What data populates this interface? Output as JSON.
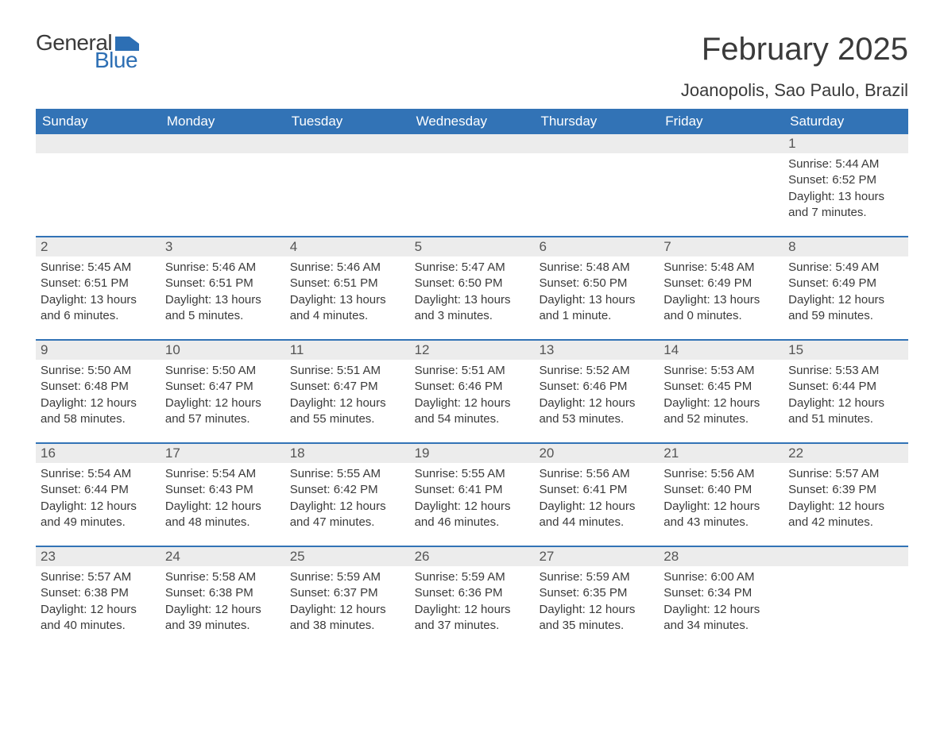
{
  "logo": {
    "text1": "General",
    "text2": "Blue",
    "icon_color": "#2d6fb4"
  },
  "title": "February 2025",
  "location": "Joanopolis, Sao Paulo, Brazil",
  "colors": {
    "header_bg": "#3273b6",
    "header_text": "#ffffff",
    "daynum_bg": "#ececec",
    "week_border": "#3273b6",
    "body_text": "#3a3a3a"
  },
  "fonts": {
    "title_pt": 40,
    "location_pt": 22,
    "weekday_pt": 17,
    "daynum_pt": 17,
    "body_pt": 15
  },
  "weekdays": [
    "Sunday",
    "Monday",
    "Tuesday",
    "Wednesday",
    "Thursday",
    "Friday",
    "Saturday"
  ],
  "weeks": [
    [
      {
        "n": "",
        "sunrise": "",
        "sunset": "",
        "daylight": ""
      },
      {
        "n": "",
        "sunrise": "",
        "sunset": "",
        "daylight": ""
      },
      {
        "n": "",
        "sunrise": "",
        "sunset": "",
        "daylight": ""
      },
      {
        "n": "",
        "sunrise": "",
        "sunset": "",
        "daylight": ""
      },
      {
        "n": "",
        "sunrise": "",
        "sunset": "",
        "daylight": ""
      },
      {
        "n": "",
        "sunrise": "",
        "sunset": "",
        "daylight": ""
      },
      {
        "n": "1",
        "sunrise": "Sunrise: 5:44 AM",
        "sunset": "Sunset: 6:52 PM",
        "daylight": "Daylight: 13 hours and 7 minutes."
      }
    ],
    [
      {
        "n": "2",
        "sunrise": "Sunrise: 5:45 AM",
        "sunset": "Sunset: 6:51 PM",
        "daylight": "Daylight: 13 hours and 6 minutes."
      },
      {
        "n": "3",
        "sunrise": "Sunrise: 5:46 AM",
        "sunset": "Sunset: 6:51 PM",
        "daylight": "Daylight: 13 hours and 5 minutes."
      },
      {
        "n": "4",
        "sunrise": "Sunrise: 5:46 AM",
        "sunset": "Sunset: 6:51 PM",
        "daylight": "Daylight: 13 hours and 4 minutes."
      },
      {
        "n": "5",
        "sunrise": "Sunrise: 5:47 AM",
        "sunset": "Sunset: 6:50 PM",
        "daylight": "Daylight: 13 hours and 3 minutes."
      },
      {
        "n": "6",
        "sunrise": "Sunrise: 5:48 AM",
        "sunset": "Sunset: 6:50 PM",
        "daylight": "Daylight: 13 hours and 1 minute."
      },
      {
        "n": "7",
        "sunrise": "Sunrise: 5:48 AM",
        "sunset": "Sunset: 6:49 PM",
        "daylight": "Daylight: 13 hours and 0 minutes."
      },
      {
        "n": "8",
        "sunrise": "Sunrise: 5:49 AM",
        "sunset": "Sunset: 6:49 PM",
        "daylight": "Daylight: 12 hours and 59 minutes."
      }
    ],
    [
      {
        "n": "9",
        "sunrise": "Sunrise: 5:50 AM",
        "sunset": "Sunset: 6:48 PM",
        "daylight": "Daylight: 12 hours and 58 minutes."
      },
      {
        "n": "10",
        "sunrise": "Sunrise: 5:50 AM",
        "sunset": "Sunset: 6:47 PM",
        "daylight": "Daylight: 12 hours and 57 minutes."
      },
      {
        "n": "11",
        "sunrise": "Sunrise: 5:51 AM",
        "sunset": "Sunset: 6:47 PM",
        "daylight": "Daylight: 12 hours and 55 minutes."
      },
      {
        "n": "12",
        "sunrise": "Sunrise: 5:51 AM",
        "sunset": "Sunset: 6:46 PM",
        "daylight": "Daylight: 12 hours and 54 minutes."
      },
      {
        "n": "13",
        "sunrise": "Sunrise: 5:52 AM",
        "sunset": "Sunset: 6:46 PM",
        "daylight": "Daylight: 12 hours and 53 minutes."
      },
      {
        "n": "14",
        "sunrise": "Sunrise: 5:53 AM",
        "sunset": "Sunset: 6:45 PM",
        "daylight": "Daylight: 12 hours and 52 minutes."
      },
      {
        "n": "15",
        "sunrise": "Sunrise: 5:53 AM",
        "sunset": "Sunset: 6:44 PM",
        "daylight": "Daylight: 12 hours and 51 minutes."
      }
    ],
    [
      {
        "n": "16",
        "sunrise": "Sunrise: 5:54 AM",
        "sunset": "Sunset: 6:44 PM",
        "daylight": "Daylight: 12 hours and 49 minutes."
      },
      {
        "n": "17",
        "sunrise": "Sunrise: 5:54 AM",
        "sunset": "Sunset: 6:43 PM",
        "daylight": "Daylight: 12 hours and 48 minutes."
      },
      {
        "n": "18",
        "sunrise": "Sunrise: 5:55 AM",
        "sunset": "Sunset: 6:42 PM",
        "daylight": "Daylight: 12 hours and 47 minutes."
      },
      {
        "n": "19",
        "sunrise": "Sunrise: 5:55 AM",
        "sunset": "Sunset: 6:41 PM",
        "daylight": "Daylight: 12 hours and 46 minutes."
      },
      {
        "n": "20",
        "sunrise": "Sunrise: 5:56 AM",
        "sunset": "Sunset: 6:41 PM",
        "daylight": "Daylight: 12 hours and 44 minutes."
      },
      {
        "n": "21",
        "sunrise": "Sunrise: 5:56 AM",
        "sunset": "Sunset: 6:40 PM",
        "daylight": "Daylight: 12 hours and 43 minutes."
      },
      {
        "n": "22",
        "sunrise": "Sunrise: 5:57 AM",
        "sunset": "Sunset: 6:39 PM",
        "daylight": "Daylight: 12 hours and 42 minutes."
      }
    ],
    [
      {
        "n": "23",
        "sunrise": "Sunrise: 5:57 AM",
        "sunset": "Sunset: 6:38 PM",
        "daylight": "Daylight: 12 hours and 40 minutes."
      },
      {
        "n": "24",
        "sunrise": "Sunrise: 5:58 AM",
        "sunset": "Sunset: 6:38 PM",
        "daylight": "Daylight: 12 hours and 39 minutes."
      },
      {
        "n": "25",
        "sunrise": "Sunrise: 5:59 AM",
        "sunset": "Sunset: 6:37 PM",
        "daylight": "Daylight: 12 hours and 38 minutes."
      },
      {
        "n": "26",
        "sunrise": "Sunrise: 5:59 AM",
        "sunset": "Sunset: 6:36 PM",
        "daylight": "Daylight: 12 hours and 37 minutes."
      },
      {
        "n": "27",
        "sunrise": "Sunrise: 5:59 AM",
        "sunset": "Sunset: 6:35 PM",
        "daylight": "Daylight: 12 hours and 35 minutes."
      },
      {
        "n": "28",
        "sunrise": "Sunrise: 6:00 AM",
        "sunset": "Sunset: 6:34 PM",
        "daylight": "Daylight: 12 hours and 34 minutes."
      },
      {
        "n": "",
        "sunrise": "",
        "sunset": "",
        "daylight": ""
      }
    ]
  ]
}
